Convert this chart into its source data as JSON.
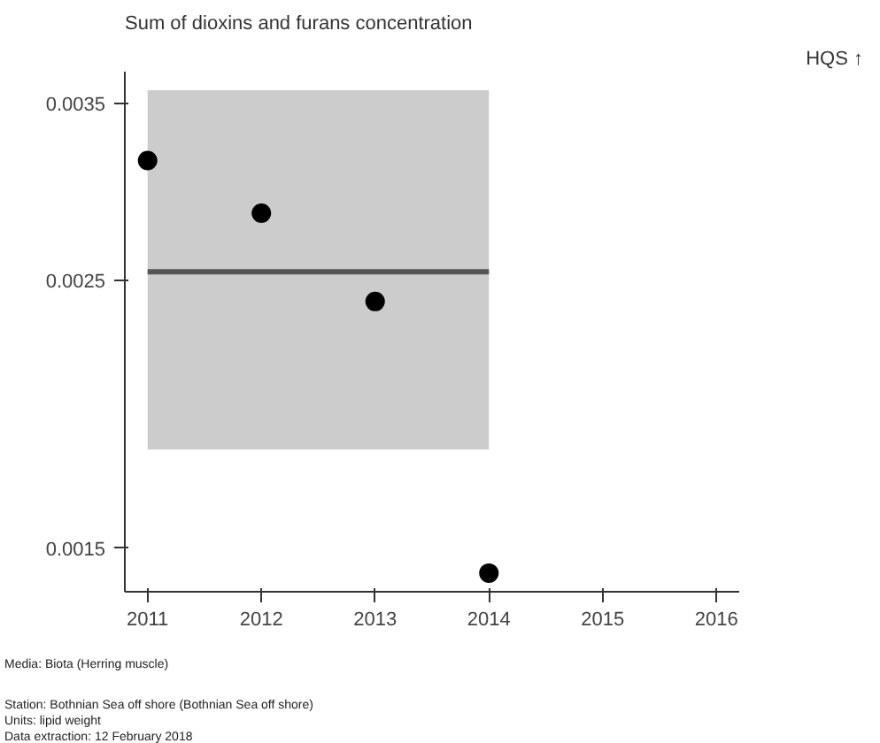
{
  "chart_data": {
    "type": "scatter",
    "title": "Sum of dioxins and furans concentration",
    "x": [
      2011,
      2012,
      2013,
      2014
    ],
    "values": [
      0.00314,
      0.00284,
      0.0024,
      0.00143
    ],
    "color": "#000000",
    "marker": "circle",
    "log": "y",
    "grid": false,
    "xlim": [
      2010.8,
      2016.2
    ],
    "xticks": [
      2011,
      2012,
      2013,
      2014,
      2015,
      2016
    ],
    "ylim": [
      0.00138,
      0.00372
    ],
    "yticks": [
      0.0015,
      0.0025,
      0.0035
    ],
    "bands": [
      {
        "axis": "y",
        "from": 0.00181,
        "to": 0.00359,
        "color": "#cccccc"
      }
    ],
    "ref_lines": [
      {
        "axis": "y",
        "value": 0.00254,
        "color": "#555555"
      }
    ],
    "annotations": [
      "HQS ↑",
      "Media: Biota (Herring muscle)",
      "Station: Bothnian Sea off shore (Bothnian Sea off shore)",
      "Units:  lipid weight",
      "Data extraction: 12 February 2018"
    ]
  }
}
